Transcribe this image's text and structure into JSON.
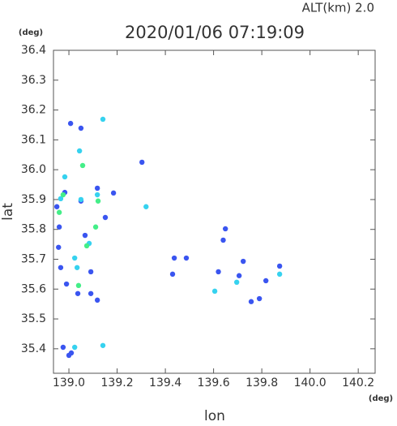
{
  "chart_data": {
    "type": "scatter",
    "title": "2020/01/06 07:19:09",
    "subtitle": "ALT(km) 2.0",
    "y_unit": "(deg)",
    "x_unit": "(deg)",
    "xlabel": "lon",
    "ylabel": "lat",
    "xlim": [
      138.936,
      140.27
    ],
    "ylim": [
      35.318,
      36.4
    ],
    "xticks": [
      {
        "value": 139,
        "label": "139.0"
      },
      139.2,
      139.4,
      139.6,
      139.8,
      {
        "value": 140,
        "label": "140.0"
      },
      140.2
    ],
    "yticks": [
      35.4,
      35.5,
      35.6,
      35.7,
      35.8,
      35.9,
      {
        "value": 36,
        "label": "36.0"
      },
      36.1,
      36.2,
      36.3,
      36.4
    ],
    "series": [
      {
        "color": "#3a55f0",
        "x": [
          139.007,
          139.05,
          138.983,
          138.95,
          139.05,
          139.067,
          138.957,
          138.966,
          138.99,
          139.037,
          139.118,
          138.976,
          139.0,
          139.01,
          139.091,
          139.185,
          139.437,
          139.43,
          139.487,
          139.649,
          139.64,
          139.723,
          139.706,
          139.817,
          139.874,
          139.756,
          139.79,
          139.091,
          138.96,
          139.151,
          139.303,
          139.118,
          139.62
        ],
        "y": [
          36.155,
          36.139,
          35.924,
          35.876,
          35.895,
          35.78,
          35.74,
          35.672,
          35.617,
          35.585,
          35.563,
          35.405,
          35.378,
          35.386,
          35.585,
          35.922,
          35.704,
          35.65,
          35.704,
          35.802,
          35.764,
          35.693,
          35.645,
          35.628,
          35.677,
          35.558,
          35.568,
          35.658,
          35.808,
          35.84,
          36.025,
          35.938,
          35.658
        ]
      },
      {
        "color": "#36d2ef",
        "x": [
          139.141,
          139.044,
          138.983,
          139.05,
          139.034,
          139.024,
          139.118,
          139.605,
          139.696,
          139.874,
          139.141,
          139.024,
          138.966,
          139.32,
          139.084
        ],
        "y": [
          36.169,
          36.063,
          35.976,
          35.9,
          35.672,
          35.704,
          35.916,
          35.593,
          35.623,
          35.65,
          35.411,
          35.405,
          35.903,
          35.876,
          35.753
        ]
      },
      {
        "color": "#44ee88",
        "x": [
          139.057,
          138.96,
          139.074,
          139.04,
          139.111,
          138.976,
          139.121
        ],
        "y": [
          36.014,
          35.857,
          35.745,
          35.612,
          35.808,
          35.916,
          35.895
        ]
      }
    ]
  }
}
